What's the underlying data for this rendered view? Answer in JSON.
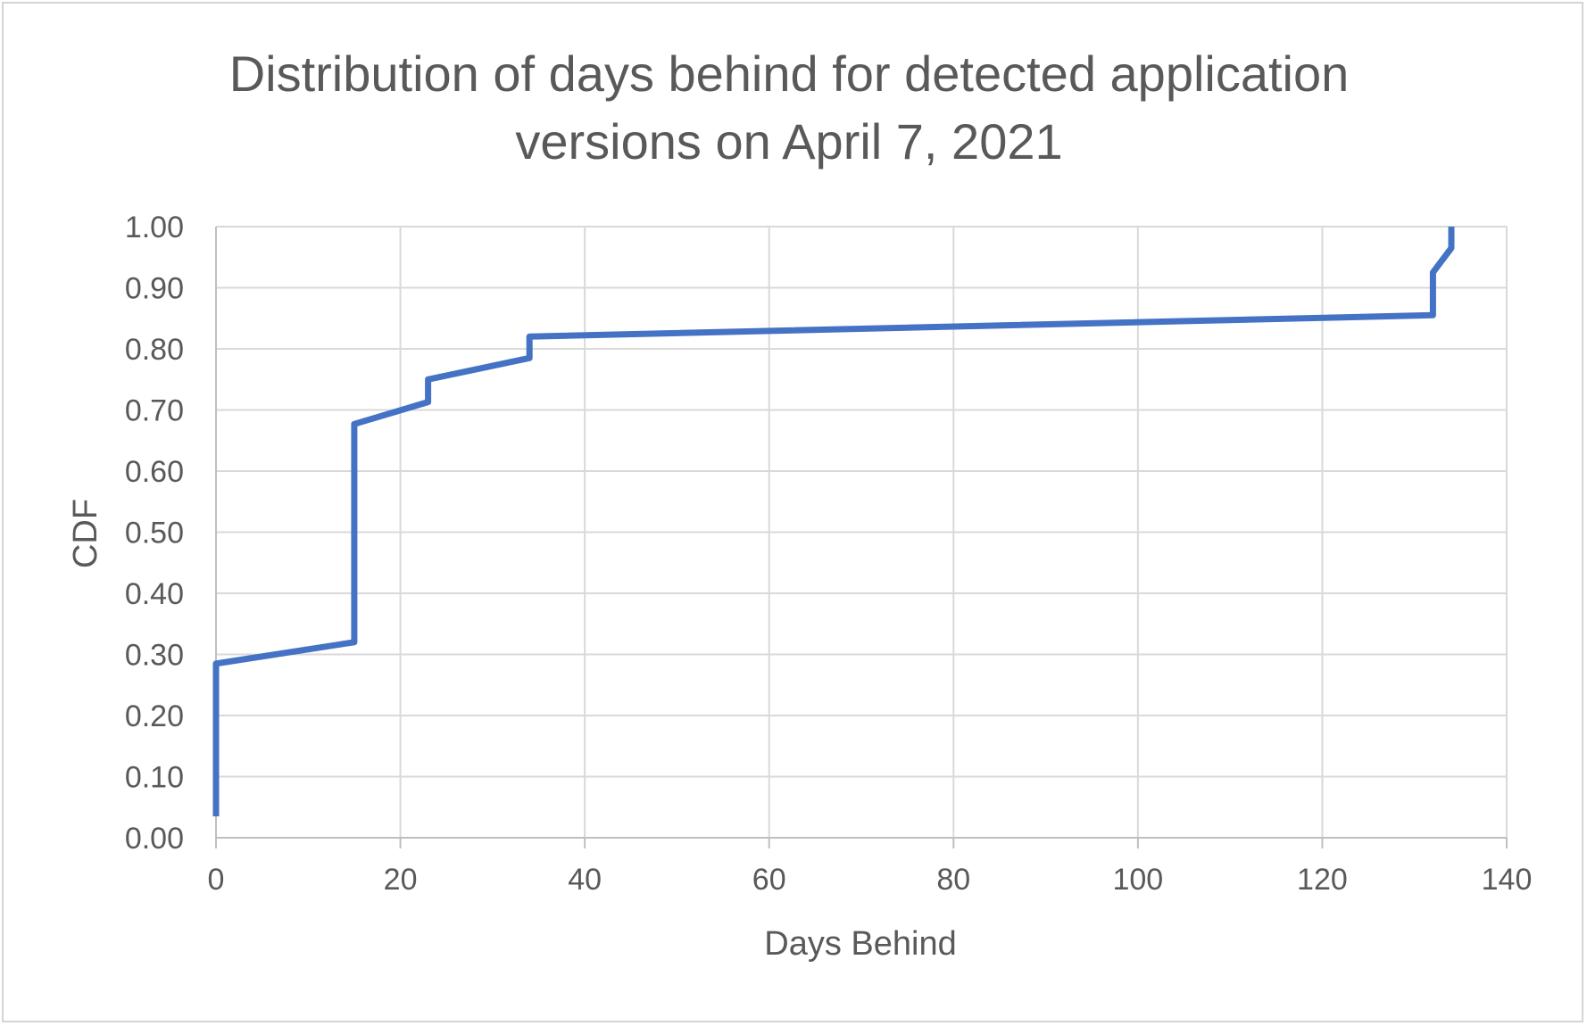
{
  "chart_data": {
    "type": "line",
    "title_lines": [
      "Distribution of days behind for detected application",
      "versions on April 7, 2021"
    ],
    "xlabel": "Days Behind",
    "ylabel": "CDF",
    "xlim": [
      0,
      140
    ],
    "ylim": [
      0,
      1
    ],
    "x_ticks": [
      0,
      20,
      40,
      60,
      80,
      100,
      120,
      140
    ],
    "x_tick_labels": [
      "0",
      "20",
      "40",
      "60",
      "80",
      "100",
      "120",
      "140"
    ],
    "y_ticks": [
      0,
      0.1,
      0.2,
      0.3,
      0.4,
      0.5,
      0.6,
      0.7,
      0.8,
      0.9,
      1.0
    ],
    "y_tick_labels": [
      "0.00",
      "0.10",
      "0.20",
      "0.30",
      "0.40",
      "0.50",
      "0.60",
      "0.70",
      "0.80",
      "0.90",
      "1.00"
    ],
    "grid": true,
    "legend": "none",
    "series": [
      {
        "color": "#4472c4",
        "x": [
          0,
          0,
          15,
          15,
          23,
          23,
          34,
          34,
          132,
          132,
          134,
          134
        ],
        "y": [
          0.035,
          0.285,
          0.32,
          0.677,
          0.713,
          0.75,
          0.785,
          0.82,
          0.855,
          0.925,
          0.965,
          1.0
        ]
      }
    ],
    "colors": {
      "grid": "#d9d9d9",
      "axis": "#bfbfbf",
      "text": "#595959",
      "frame": "#d4d4d4"
    }
  }
}
